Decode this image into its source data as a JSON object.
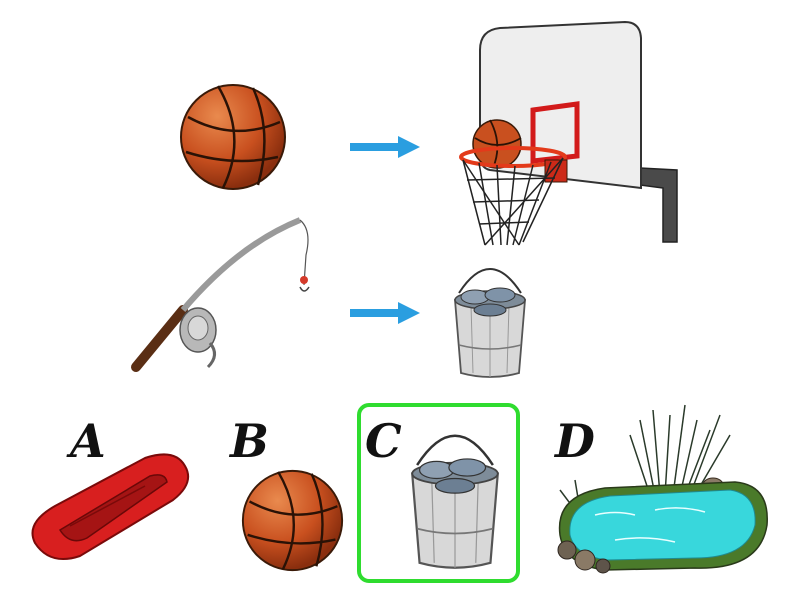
{
  "options": [
    {
      "letter": "A",
      "item": "raft"
    },
    {
      "letter": "B",
      "item": "basketball"
    },
    {
      "letter": "C",
      "item": "fish-bucket",
      "selected": true
    },
    {
      "letter": "D",
      "item": "pond"
    }
  ],
  "rows": [
    {
      "source": "basketball",
      "target": "basketball-hoop"
    },
    {
      "source": "fishing-rod",
      "target": "fish-bucket"
    }
  ],
  "colors": {
    "arrow": "#2a9ee0",
    "selection": "#2fdc2f",
    "ball": "#c9501f",
    "water": "#38d7dc",
    "raft": "#d81f1f"
  }
}
